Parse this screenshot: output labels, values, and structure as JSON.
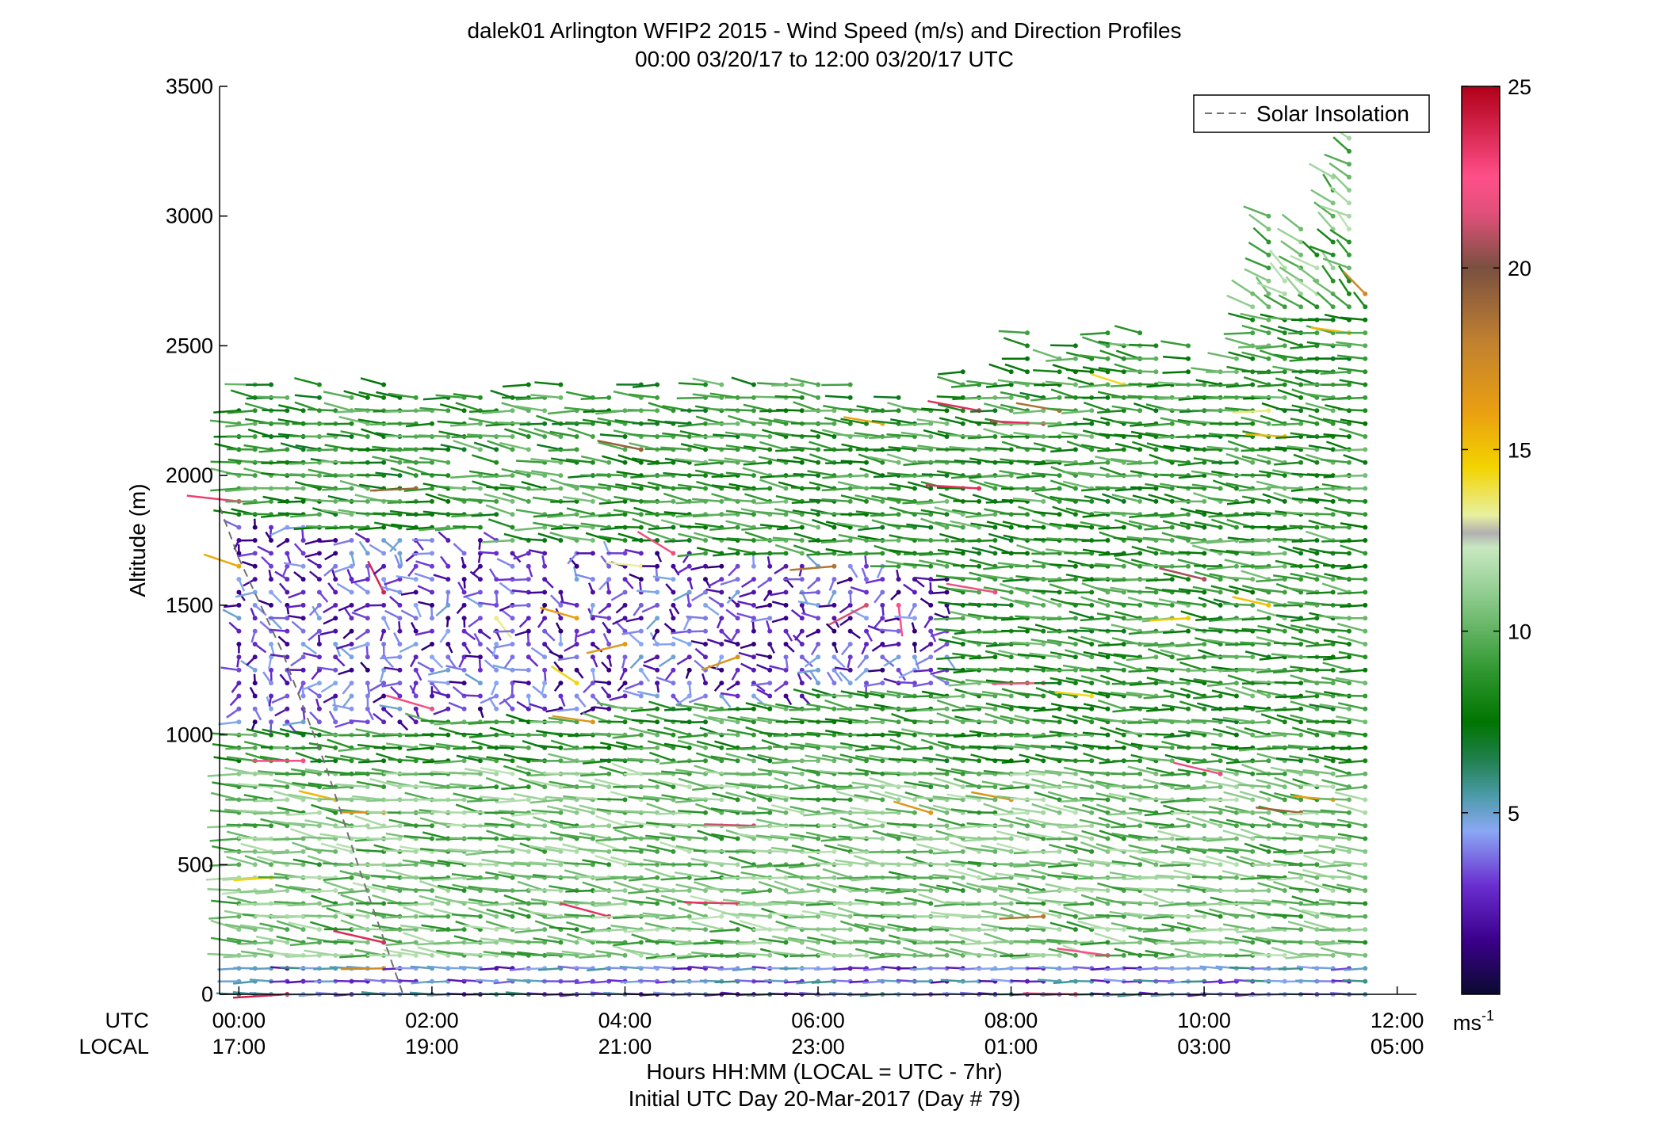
{
  "chart_data": {
    "type": "wind-barb-profile",
    "title_line1": "dalek01 Arlington WFIP2 2015 - Wind Speed (m/s) and Direction Profiles",
    "title_line2": "00:00 03/20/17 to 12:00 03/20/17  UTC",
    "ylabel": "Altitude (m)",
    "xlabel_line1": "Hours HH:MM  (LOCAL = UTC - 7hr)",
    "xlabel_line2": "Initial UTC Day 20-Mar-2017 (Day # 79)",
    "row_label_utc": "UTC",
    "row_label_local": "LOCAL",
    "ylim": [
      0,
      3500
    ],
    "yticks": [
      0,
      500,
      1000,
      1500,
      2000,
      2500,
      3000,
      3500
    ],
    "ytick_labels": [
      "0",
      "500",
      "1000",
      "1500",
      "2000",
      "2500",
      "3000",
      "3500"
    ],
    "xlim_hours": [
      -0.2,
      12.2
    ],
    "xticks_hours": [
      0,
      2,
      4,
      6,
      8,
      10,
      12
    ],
    "xtick_labels_utc": [
      "00:00",
      "02:00",
      "04:00",
      "06:00",
      "08:00",
      "10:00",
      "12:00"
    ],
    "xtick_labels_local": [
      "17:00",
      "19:00",
      "21:00",
      "23:00",
      "01:00",
      "03:00",
      "05:00"
    ],
    "legend": {
      "entry": "Solar Insolation",
      "placement": "top-right",
      "line_style": "dashed",
      "line_color": "#707070"
    },
    "solar_insolation": {
      "x_hours": [
        -0.5,
        0.0,
        0.45,
        0.9,
        1.25,
        1.7
      ],
      "y_m": [
        1880,
        1680,
        1320,
        880,
        480,
        0
      ]
    },
    "colorbar": {
      "unit_label": "ms",
      "unit_exponent": "-1",
      "range": [
        0,
        25
      ],
      "tick_values": [
        5,
        10,
        15,
        20,
        25
      ],
      "tick_labels": [
        "5",
        "10",
        "15",
        "20",
        "25"
      ],
      "stops": [
        {
          "v": 0,
          "c": "#0a0a30"
        },
        {
          "v": 1.5,
          "c": "#3b008b"
        },
        {
          "v": 3,
          "c": "#6a2ed0"
        },
        {
          "v": 4.5,
          "c": "#8aa8f4"
        },
        {
          "v": 5.5,
          "c": "#4a9aa6"
        },
        {
          "v": 6.5,
          "c": "#1f7f4a"
        },
        {
          "v": 7.5,
          "c": "#007500"
        },
        {
          "v": 9,
          "c": "#339933"
        },
        {
          "v": 11,
          "c": "#8fcc8f"
        },
        {
          "v": 12.3,
          "c": "#c8e8c0"
        },
        {
          "v": 12.7,
          "c": "#b0b0b0"
        },
        {
          "v": 13.2,
          "c": "#e8f0a0"
        },
        {
          "v": 14.5,
          "c": "#f2d400"
        },
        {
          "v": 16,
          "c": "#eba010"
        },
        {
          "v": 18,
          "c": "#c08030"
        },
        {
          "v": 20,
          "c": "#7a5040"
        },
        {
          "v": 21.5,
          "c": "#e0507a"
        },
        {
          "v": 22.5,
          "c": "#ff4f8a"
        },
        {
          "v": 25,
          "c": "#b00018"
        }
      ]
    },
    "series_profile_times_hours": {
      "start": 0.0,
      "end": 11.83,
      "step": 0.1667
    },
    "note_values": "Each vertical profile shows wind direction pointers at altitudes 0–3500 m colored by speed (0–25 m/s); lower levels mostly westerly at 7–10 m/s, a weak (<5 m/s) layer near 1000–1800 m early in the period, increasing coverage aloft after 08:00."
  }
}
